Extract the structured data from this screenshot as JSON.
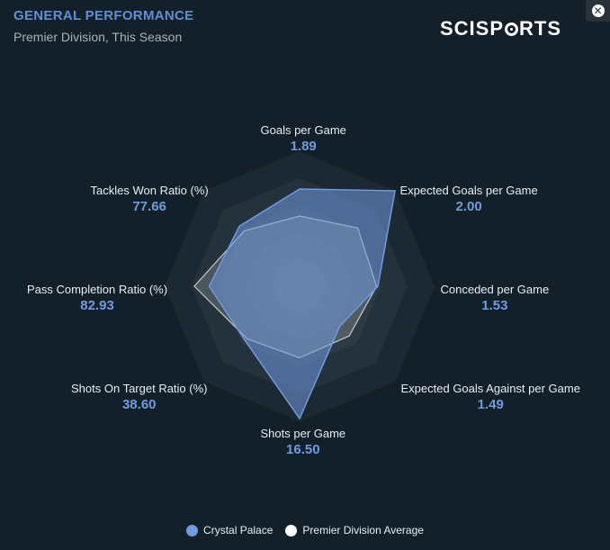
{
  "header": {
    "title": "GENERAL PERFORMANCE",
    "subtitle": "Premier Division, This Season",
    "logo_text_left": "SCISP",
    "logo_text_right": "RTS"
  },
  "colors": {
    "team": "#6f9be0",
    "average": "#ffffff"
  },
  "chart_data": {
    "type": "radar",
    "axes": [
      {
        "label": "Goals per Game",
        "value": "1.89"
      },
      {
        "label": "Expected Goals per Game",
        "value": "2.00"
      },
      {
        "label": "Conceded per Game",
        "value": "1.53"
      },
      {
        "label": "Expected Goals Against per Game",
        "value": "1.49"
      },
      {
        "label": "Shots per Game",
        "value": "16.50"
      },
      {
        "label": "Shots On Target Ratio (%)",
        "value": "38.60"
      },
      {
        "label": "Pass Completion Ratio (%)",
        "value": "82.93"
      },
      {
        "label": "Tackles Won Ratio (%)",
        "value": "77.66"
      }
    ],
    "series": [
      {
        "name": "Crystal Palace",
        "normalized": [
          0.72,
          1.0,
          0.58,
          0.42,
          0.98,
          0.57,
          0.67,
          0.63
        ]
      },
      {
        "name": "Premier Division Average",
        "normalized": [
          0.52,
          0.61,
          0.57,
          0.52,
          0.53,
          0.55,
          0.78,
          0.58
        ]
      }
    ],
    "rings": 5,
    "legend_position": "bottom"
  }
}
